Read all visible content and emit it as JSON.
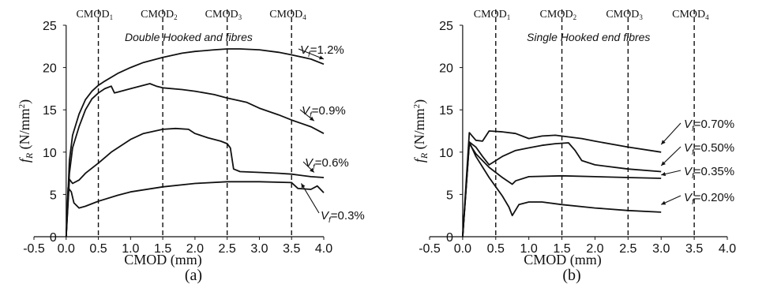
{
  "chart_data": [
    {
      "type": "line",
      "panel_label": "(a)",
      "annotation": "Double Hooked and fibres",
      "xlabel": "CMOD (mm)",
      "ylabel": "f_R (N/mm²)",
      "ylabel_parts": {
        "f": "f",
        "sub": "R",
        "unit": " (N/mm",
        "sup": "2",
        "close": ")"
      },
      "xlim": [
        -0.5,
        4.0
      ],
      "ylim": [
        0,
        25
      ],
      "xticks": [
        "-0.5",
        "0.0",
        "0.5",
        "1.0",
        "1.5",
        "2.0",
        "2.5",
        "3.0",
        "3.5",
        "4.0"
      ],
      "yticks": [
        "0",
        "5",
        "10",
        "15",
        "20",
        "25"
      ],
      "grid": false,
      "cmod_lines": [
        {
          "x": 0.5,
          "label": "CMOD",
          "sub": "1"
        },
        {
          "x": 1.5,
          "label": "CMOD",
          "sub": "2"
        },
        {
          "x": 2.5,
          "label": "CMOD",
          "sub": "3"
        },
        {
          "x": 3.5,
          "label": "CMOD",
          "sub": "4"
        }
      ],
      "series": [
        {
          "name": "=1.2%",
          "x": [
            0,
            0.05,
            0.1,
            0.2,
            0.3,
            0.4,
            0.5,
            0.6,
            0.8,
            1.0,
            1.2,
            1.5,
            1.8,
            2.0,
            2.3,
            2.5,
            2.7,
            3.0,
            3.3,
            3.5,
            3.8,
            4.0
          ],
          "y": [
            0,
            9,
            12,
            14.5,
            16.2,
            17.2,
            17.9,
            18.4,
            19.3,
            20.0,
            20.6,
            21.2,
            21.7,
            21.9,
            22.1,
            22.2,
            22.2,
            22.1,
            21.8,
            21.5,
            21.0,
            20.4
          ]
        },
        {
          "name": "=0.9%",
          "x": [
            0,
            0.05,
            0.1,
            0.2,
            0.3,
            0.4,
            0.5,
            0.6,
            0.7,
            0.75,
            0.8,
            1.0,
            1.2,
            1.3,
            1.4,
            1.5,
            1.8,
            2.0,
            2.3,
            2.5,
            2.8,
            3.0,
            3.3,
            3.5,
            3.8,
            4.0
          ],
          "y": [
            0,
            7.5,
            10.5,
            13.0,
            15.0,
            16.3,
            17.0,
            17.5,
            17.8,
            17.0,
            17.1,
            17.5,
            17.9,
            18.1,
            17.8,
            17.6,
            17.4,
            17.2,
            16.8,
            16.4,
            15.9,
            15.2,
            14.4,
            13.8,
            13.0,
            12.2
          ]
        },
        {
          "name": "=0.6%",
          "x": [
            0,
            0.05,
            0.1,
            0.2,
            0.3,
            0.5,
            0.7,
            1.0,
            1.2,
            1.5,
            1.7,
            1.9,
            2.0,
            2.2,
            2.3,
            2.4,
            2.5,
            2.55,
            2.6,
            2.7,
            3.0,
            3.3,
            3.5,
            3.8,
            4.0
          ],
          "y": [
            0,
            6.8,
            6.3,
            6.7,
            7.5,
            8.7,
            10.0,
            11.5,
            12.2,
            12.7,
            12.8,
            12.7,
            12.2,
            11.7,
            11.5,
            11.3,
            11.0,
            10.5,
            8.0,
            7.7,
            7.6,
            7.5,
            7.4,
            7.1,
            7.0
          ]
        },
        {
          "name": "=0.3%",
          "x": [
            0,
            0.03,
            0.08,
            0.12,
            0.2,
            0.3,
            0.5,
            0.8,
            1.0,
            1.5,
            2.0,
            2.5,
            3.0,
            3.5,
            3.6,
            3.8,
            3.9,
            4.0
          ],
          "y": [
            0,
            5.8,
            5.3,
            4.0,
            3.4,
            3.6,
            4.2,
            4.9,
            5.3,
            5.9,
            6.3,
            6.5,
            6.5,
            6.4,
            5.7,
            5.6,
            6.0,
            5.2
          ]
        }
      ],
      "labels": [
        {
          "v": "V",
          "sub": "f",
          "text": "=1.2%"
        },
        {
          "v": "V",
          "sub": "f",
          "text": "=0.9%"
        },
        {
          "v": "V",
          "sub": "f",
          "text": "=0.6%"
        },
        {
          "v": "V",
          "sub": "f",
          "text": "=0.3%"
        }
      ]
    },
    {
      "type": "line",
      "panel_label": "(b)",
      "annotation": "Single Hooked end fibres",
      "xlabel": "CMOD (mm)",
      "ylabel": "f_R (N/mm²)",
      "ylabel_parts": {
        "f": "f",
        "sub": "R",
        "unit": " (N/mm",
        "sup": "2",
        "close": ")"
      },
      "xlim": [
        -0.5,
        4.0
      ],
      "ylim": [
        0,
        25
      ],
      "xticks": [
        "-0.5",
        "0.0",
        "0.5",
        "1.0",
        "1.5",
        "2.0",
        "2.5",
        "3.0",
        "3.5",
        "4.0"
      ],
      "yticks": [
        "0",
        "5",
        "10",
        "15",
        "20",
        "25"
      ],
      "grid": false,
      "cmod_lines": [
        {
          "x": 0.5,
          "label": "CMOD",
          "sub": "1"
        },
        {
          "x": 1.5,
          "label": "CMOD",
          "sub": "2"
        },
        {
          "x": 2.5,
          "label": "CMOD",
          "sub": "3"
        },
        {
          "x": 3.5,
          "label": "CMOD",
          "sub": "4"
        }
      ],
      "series": [
        {
          "name": "=0.70%",
          "x": [
            0,
            0.1,
            0.2,
            0.3,
            0.4,
            0.6,
            0.8,
            1.0,
            1.2,
            1.4,
            1.6,
            1.8,
            2.0,
            2.5,
            3.0
          ],
          "y": [
            0,
            12.3,
            11.4,
            11.3,
            12.5,
            12.4,
            12.2,
            11.6,
            11.9,
            12.0,
            11.8,
            11.6,
            11.3,
            10.6,
            10.0
          ]
        },
        {
          "name": "=0.50%",
          "x": [
            0,
            0.1,
            0.2,
            0.3,
            0.4,
            0.6,
            0.8,
            1.0,
            1.2,
            1.4,
            1.6,
            1.7,
            1.8,
            2.0,
            2.5,
            3.0
          ],
          "y": [
            0,
            11.2,
            10.6,
            9.5,
            8.5,
            9.5,
            10.2,
            10.5,
            10.8,
            11.0,
            11.1,
            10.2,
            9.0,
            8.5,
            8.0,
            7.7
          ]
        },
        {
          "name": "=0.35%",
          "x": [
            0,
            0.1,
            0.2,
            0.4,
            0.6,
            0.75,
            0.8,
            1.0,
            1.5,
            2.0,
            2.5,
            3.0
          ],
          "y": [
            0,
            11.0,
            9.8,
            8.2,
            7.0,
            6.2,
            6.6,
            7.1,
            7.2,
            7.1,
            7.0,
            6.9
          ]
        },
        {
          "name": "=0.20%",
          "x": [
            0,
            0.1,
            0.2,
            0.4,
            0.6,
            0.7,
            0.75,
            0.85,
            1.0,
            1.2,
            1.5,
            2.0,
            2.5,
            3.0
          ],
          "y": [
            0,
            11.2,
            9.5,
            7.0,
            4.8,
            3.5,
            2.5,
            3.8,
            4.1,
            4.1,
            3.8,
            3.4,
            3.1,
            2.9
          ]
        }
      ],
      "labels": [
        {
          "v": "V",
          "sub": "f",
          "text": "=0.70%"
        },
        {
          "v": "V",
          "sub": "f",
          "text": "=0.50%"
        },
        {
          "v": "V",
          "sub": "f",
          "text": "=0.35%"
        },
        {
          "v": "V",
          "sub": "f",
          "text": "=0.20%"
        }
      ]
    }
  ]
}
